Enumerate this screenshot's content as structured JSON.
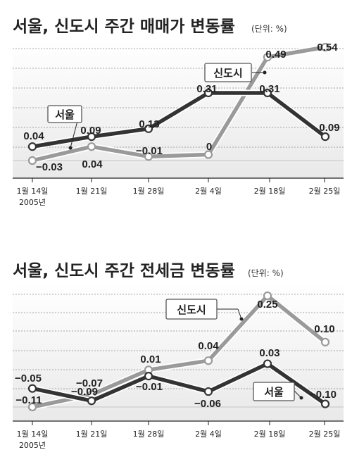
{
  "chart_data": [
    {
      "type": "line",
      "title": "서울, 신도시 주간 매매가 변동률",
      "unit": "(단위: %)",
      "categories": [
        "1월 14일",
        "1월 21일",
        "1월 28일",
        "2월 4일",
        "2월 18일",
        "2월 25일"
      ],
      "year_label": "2005년",
      "ylim": [
        -0.1,
        0.6
      ],
      "grid": true,
      "series": [
        {
          "name": "서울",
          "values": [
            0.04,
            0.09,
            0.13,
            0.31,
            0.31,
            0.09
          ],
          "color": "#333333"
        },
        {
          "name": "신도시",
          "values": [
            -0.03,
            0.04,
            -0.01,
            0,
            0.49,
            0.54
          ],
          "color": "#9a9a9a"
        }
      ],
      "value_labels": {
        "서울": [
          "0.04",
          "0.09",
          "0.13",
          "0.31",
          "0.31",
          "0.09"
        ],
        "신도시": [
          "−0.03",
          "0.04",
          "−0.01",
          "0",
          "0.49",
          "0.54"
        ]
      }
    },
    {
      "type": "line",
      "title": "서울, 신도시 주간 전세금 변동률",
      "unit": "(단위: %)",
      "categories": [
        "1월 14일",
        "1월 21일",
        "1월 28일",
        "2월 4일",
        "2월 18일",
        "2월 25일"
      ],
      "year_label": "2005년",
      "ylim": [
        -0.15,
        0.3
      ],
      "grid": true,
      "series": [
        {
          "name": "서울",
          "values": [
            -0.05,
            -0.09,
            -0.01,
            -0.06,
            0.03,
            -0.1
          ],
          "color": "#333333"
        },
        {
          "name": "신도시",
          "values": [
            -0.11,
            -0.07,
            0.01,
            0.04,
            0.25,
            0.1
          ],
          "color": "#9a9a9a"
        }
      ],
      "value_labels": {
        "서울": [
          "−0.05",
          "−0.09",
          "−0.01",
          "−0.06",
          "0.03",
          "−0.10"
        ],
        "신도시": [
          "−0.11",
          "−0.07",
          "0.01",
          "0.04",
          "0.25",
          "0.10"
        ]
      }
    }
  ]
}
